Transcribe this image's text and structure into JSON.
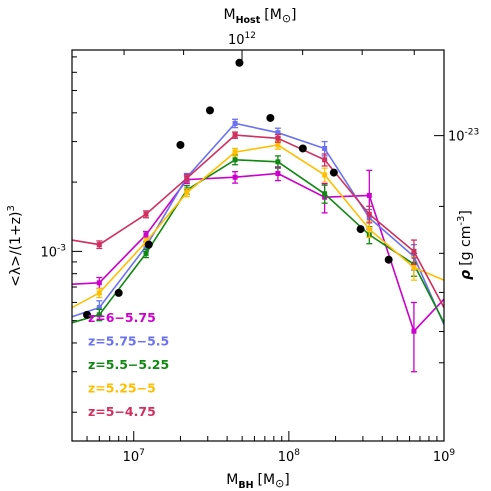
{
  "chart_data": {
    "type": "line",
    "xlabel_main": "M",
    "xlabel_main_sub": "BH",
    "xlabel_main_unit": "[M",
    "xlabel_main_unit_end": "]",
    "xlabel_top": "M",
    "xlabel_top_sub": "Host",
    "xlabel_top_unit": "[M",
    "xlabel_top_unit_end": "]",
    "ylabel_left": "<λ>/(1+z)",
    "ylabel_left_sup": "3",
    "ylabel_right_rho": "ρ",
    "ylabel_right_unit": "[g cm",
    "ylabel_right_sup": "-3",
    "ylabel_right_end": "]",
    "x_scale": "log",
    "xlim": [
      4000000,
      1000000000
    ],
    "x_ticks": [
      {
        "value": 10000000,
        "label": "10",
        "exp": "7"
      },
      {
        "value": 100000000,
        "label": "10",
        "exp": "8"
      },
      {
        "value": 1000000000,
        "label": "10",
        "exp": "9"
      }
    ],
    "y_scale": "log",
    "ylim": [
      0.00015,
      0.0075
    ],
    "y_ticks_left": [
      {
        "value": 0.001,
        "label": "10",
        "exp": "-3"
      }
    ],
    "top_ticks": [
      {
        "label": "10",
        "exp": "12",
        "fraction": 0.457
      }
    ],
    "right_ticks": [
      {
        "label": "10",
        "exp": "-23",
        "fraction": 0.219
      }
    ],
    "series": [
      {
        "name": "z=6−5.75",
        "color": "#cc00cc",
        "x": [
          4000000,
          6000000,
          12000000,
          22000000,
          45000000,
          85000000,
          170000000,
          330000000,
          640000000,
          1000000000
        ],
        "y": [
          0.00072,
          0.00073,
          0.00118,
          0.00205,
          0.0021,
          0.00218,
          0.00172,
          0.00175,
          0.00045,
          0.00062
        ],
        "err": [
          0,
          4e-05,
          4e-05,
          8e-05,
          0.00012,
          0.00015,
          0.00025,
          0.0005,
          0.00015,
          0
        ]
      },
      {
        "name": "z=5.75−5.5",
        "color": "#6a72f0",
        "x": [
          4000000,
          6000000,
          12000000,
          22000000,
          45000000,
          85000000,
          170000000,
          330000000,
          640000000,
          1000000000
        ],
        "y": [
          0.00052,
          0.00057,
          0.00105,
          0.0021,
          0.0036,
          0.00328,
          0.0028,
          0.0014,
          0.00095,
          0.00048
        ],
        "err": [
          0,
          4e-05,
          5e-05,
          8e-05,
          0.00015,
          0.00015,
          0.0002,
          0.00012,
          0.00012,
          0
        ]
      },
      {
        "name": "z=5.5−5.25",
        "color": "#118811",
        "x": [
          4000000,
          6000000,
          12000000,
          22000000,
          45000000,
          85000000,
          170000000,
          330000000,
          640000000,
          1000000000
        ],
        "y": [
          0.00049,
          0.00053,
          0.00098,
          0.00185,
          0.0025,
          0.00245,
          0.00178,
          0.00118,
          0.00088,
          0.00049
        ],
        "err": [
          0,
          3e-05,
          4e-05,
          8e-05,
          0.00012,
          0.00015,
          0.00016,
          0.0001,
          0.0001,
          0
        ]
      },
      {
        "name": "z=5.25−5",
        "color": "#ffbf00",
        "x": [
          4000000,
          6000000,
          12000000,
          22000000,
          45000000,
          85000000,
          170000000,
          330000000,
          640000000,
          1000000000
        ],
        "y": [
          0.00057,
          0.00066,
          0.0011,
          0.0018,
          0.0027,
          0.0029,
          0.00215,
          0.00125,
          0.00085,
          0.00075
        ],
        "err": [
          0,
          3e-05,
          4e-05,
          7e-05,
          0.0001,
          0.00012,
          0.00015,
          0.0001,
          0.0001,
          0
        ]
      },
      {
        "name": "z=5−4.75",
        "color": "#d03060",
        "x": [
          4000000,
          6000000,
          12000000,
          22000000,
          45000000,
          85000000,
          170000000,
          330000000,
          640000000,
          1000000000
        ],
        "y": [
          0.00112,
          0.00107,
          0.00145,
          0.00208,
          0.0032,
          0.0031,
          0.0025,
          0.00145,
          0.001,
          0.00057
        ],
        "err": [
          0,
          4e-05,
          5e-05,
          8e-05,
          0.0001,
          0.00012,
          0.00015,
          0.00012,
          0.00012,
          0
        ]
      }
    ],
    "density_points": {
      "color": "#000000",
      "x": [
        5000000,
        8000000,
        12500000,
        20000000,
        31000000,
        48000000,
        76000000,
        123000000,
        195000000,
        290000000,
        440000000
      ],
      "y": [
        0.00053,
        0.00066,
        0.00107,
        0.0029,
        0.0041,
        0.0066,
        0.0038,
        0.0028,
        0.0022,
        0.00125,
        0.00092
      ]
    },
    "legend_position": "bottom-left"
  }
}
